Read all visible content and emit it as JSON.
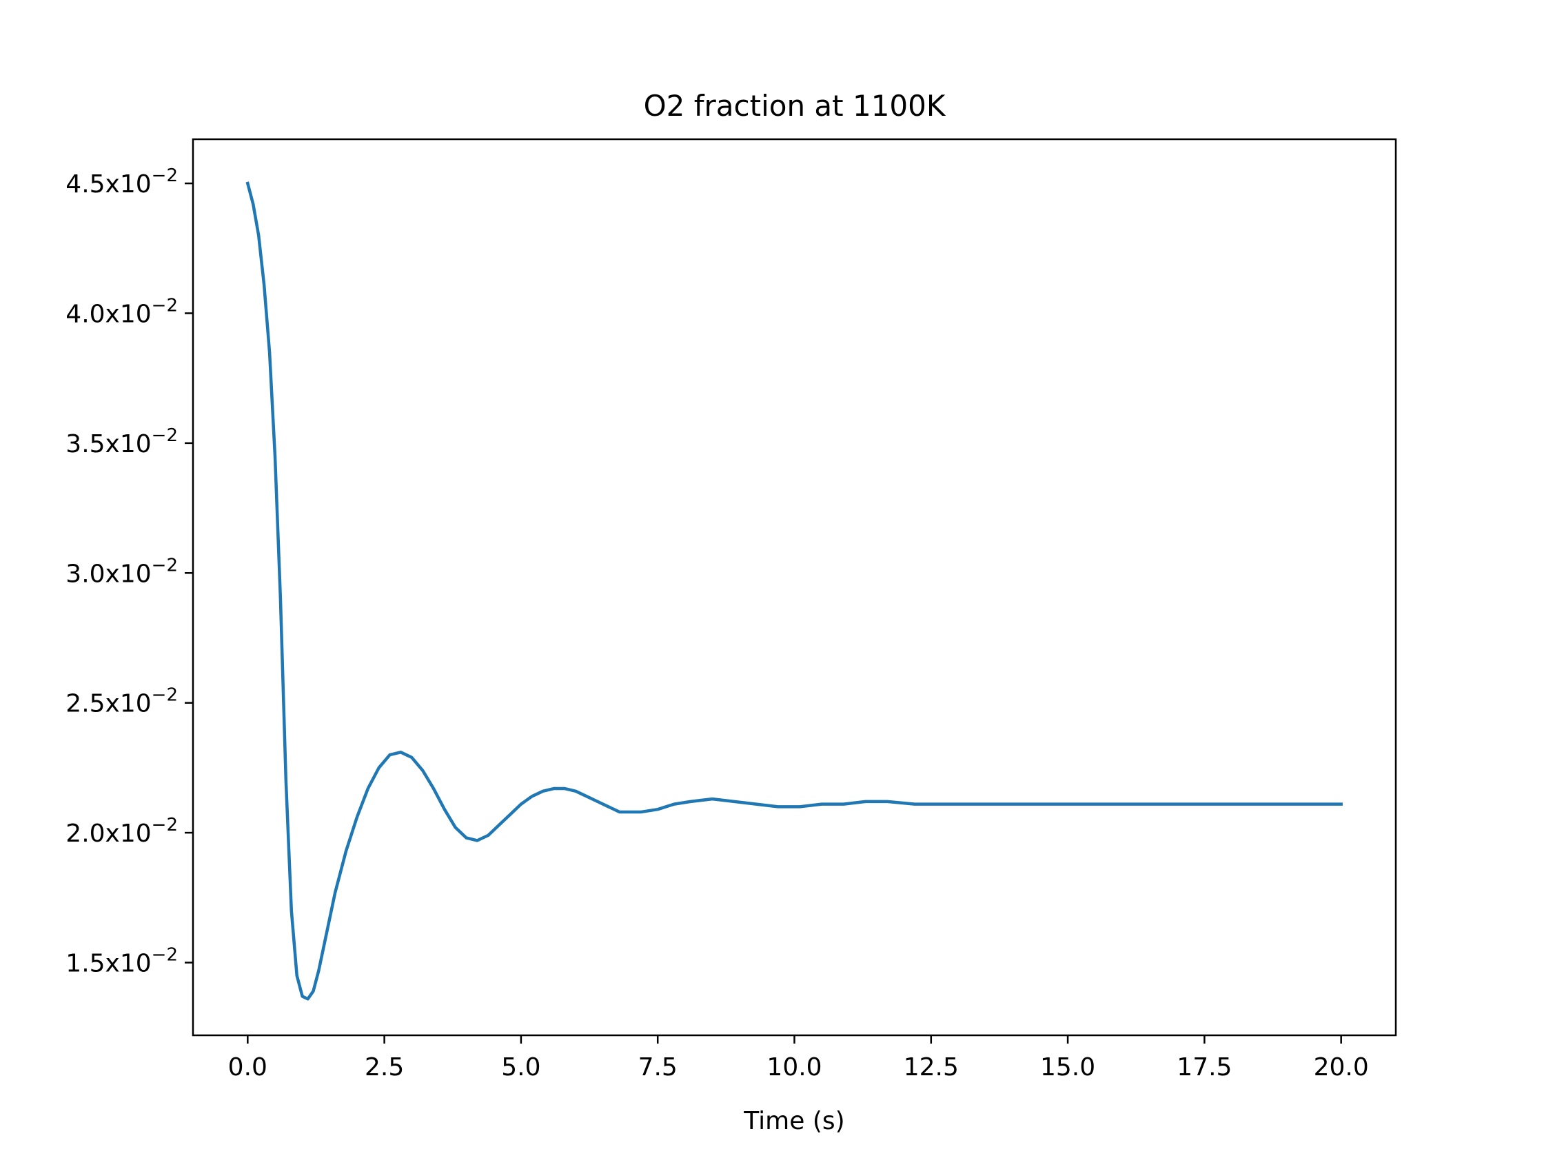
{
  "chart_data": {
    "type": "line",
    "title": "O2 fraction at 1100K",
    "xlabel": "Time (s)",
    "ylabel": "",
    "xlim": [
      -1.0,
      21.0
    ],
    "ylim": [
      0.0122,
      0.0467
    ],
    "grid": false,
    "xticks": [
      {
        "value": 0.0,
        "label": "0.0"
      },
      {
        "value": 2.5,
        "label": "2.5"
      },
      {
        "value": 5.0,
        "label": "5.0"
      },
      {
        "value": 7.5,
        "label": "7.5"
      },
      {
        "value": 10.0,
        "label": "10.0"
      },
      {
        "value": 12.5,
        "label": "12.5"
      },
      {
        "value": 15.0,
        "label": "15.0"
      },
      {
        "value": 17.5,
        "label": "17.5"
      },
      {
        "value": 20.0,
        "label": "20.0"
      }
    ],
    "yticks": [
      {
        "value": 0.015,
        "mantissa": "1.5x10",
        "exponent": "−2"
      },
      {
        "value": 0.02,
        "mantissa": "2.0x10",
        "exponent": "−2"
      },
      {
        "value": 0.025,
        "mantissa": "2.5x10",
        "exponent": "−2"
      },
      {
        "value": 0.03,
        "mantissa": "3.0x10",
        "exponent": "−2"
      },
      {
        "value": 0.035,
        "mantissa": "3.5x10",
        "exponent": "−2"
      },
      {
        "value": 0.04,
        "mantissa": "4.0x10",
        "exponent": "−2"
      },
      {
        "value": 0.045,
        "mantissa": "4.5x10",
        "exponent": "−2"
      }
    ],
    "series": [
      {
        "color": "#1f77b4",
        "x": [
          0.0,
          0.1,
          0.2,
          0.3,
          0.4,
          0.5,
          0.6,
          0.7,
          0.8,
          0.9,
          1.0,
          1.1,
          1.2,
          1.3,
          1.4,
          1.6,
          1.8,
          2.0,
          2.2,
          2.4,
          2.6,
          2.8,
          3.0,
          3.2,
          3.4,
          3.6,
          3.8,
          4.0,
          4.2,
          4.4,
          4.6,
          4.8,
          5.0,
          5.2,
          5.4,
          5.6,
          5.8,
          6.0,
          6.2,
          6.4,
          6.6,
          6.8,
          7.0,
          7.2,
          7.5,
          7.8,
          8.1,
          8.5,
          8.9,
          9.3,
          9.7,
          10.1,
          10.5,
          10.9,
          11.3,
          11.7,
          12.2,
          12.7,
          13.2,
          14.0,
          15.0,
          16.0,
          17.0,
          18.0,
          19.0,
          20.0
        ],
        "y": [
          0.045,
          0.0442,
          0.043,
          0.0411,
          0.0385,
          0.0345,
          0.029,
          0.022,
          0.017,
          0.0145,
          0.0137,
          0.0136,
          0.0139,
          0.0147,
          0.0157,
          0.0177,
          0.0193,
          0.0206,
          0.0217,
          0.0225,
          0.023,
          0.0231,
          0.0229,
          0.0224,
          0.0217,
          0.0209,
          0.0202,
          0.0198,
          0.0197,
          0.0199,
          0.0203,
          0.0207,
          0.0211,
          0.0214,
          0.0216,
          0.0217,
          0.0217,
          0.0216,
          0.0214,
          0.0212,
          0.021,
          0.0208,
          0.0208,
          0.0208,
          0.0209,
          0.0211,
          0.0212,
          0.0213,
          0.0212,
          0.0211,
          0.021,
          0.021,
          0.0211,
          0.0211,
          0.0212,
          0.0212,
          0.0211,
          0.0211,
          0.0211,
          0.0211,
          0.0211,
          0.0211,
          0.0211,
          0.0211,
          0.0211,
          0.0211
        ]
      }
    ]
  }
}
